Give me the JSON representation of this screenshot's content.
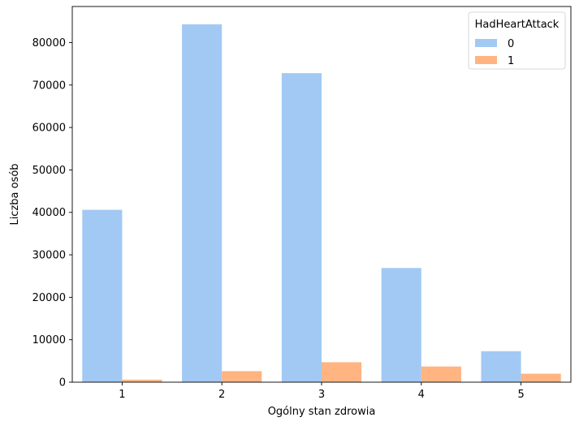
{
  "chart_data": {
    "type": "bar",
    "categories": [
      "1",
      "2",
      "3",
      "4",
      "5"
    ],
    "series": [
      {
        "name": "0",
        "values": [
          40600,
          84300,
          72800,
          26900,
          7300
        ],
        "color": "#a1c9f4"
      },
      {
        "name": "1",
        "values": [
          600,
          2600,
          4700,
          3700,
          2000
        ],
        "color": "#ffb482"
      }
    ],
    "xlabel": "Ogólny stan zdrowia",
    "ylabel": "Liczba osób",
    "ylim": [
      0,
      88500
    ],
    "yticks": [
      0,
      10000,
      20000,
      30000,
      40000,
      50000,
      60000,
      70000,
      80000
    ],
    "grid": false,
    "legend": {
      "title": "HadHeartAttack",
      "placement": "top-right"
    }
  }
}
